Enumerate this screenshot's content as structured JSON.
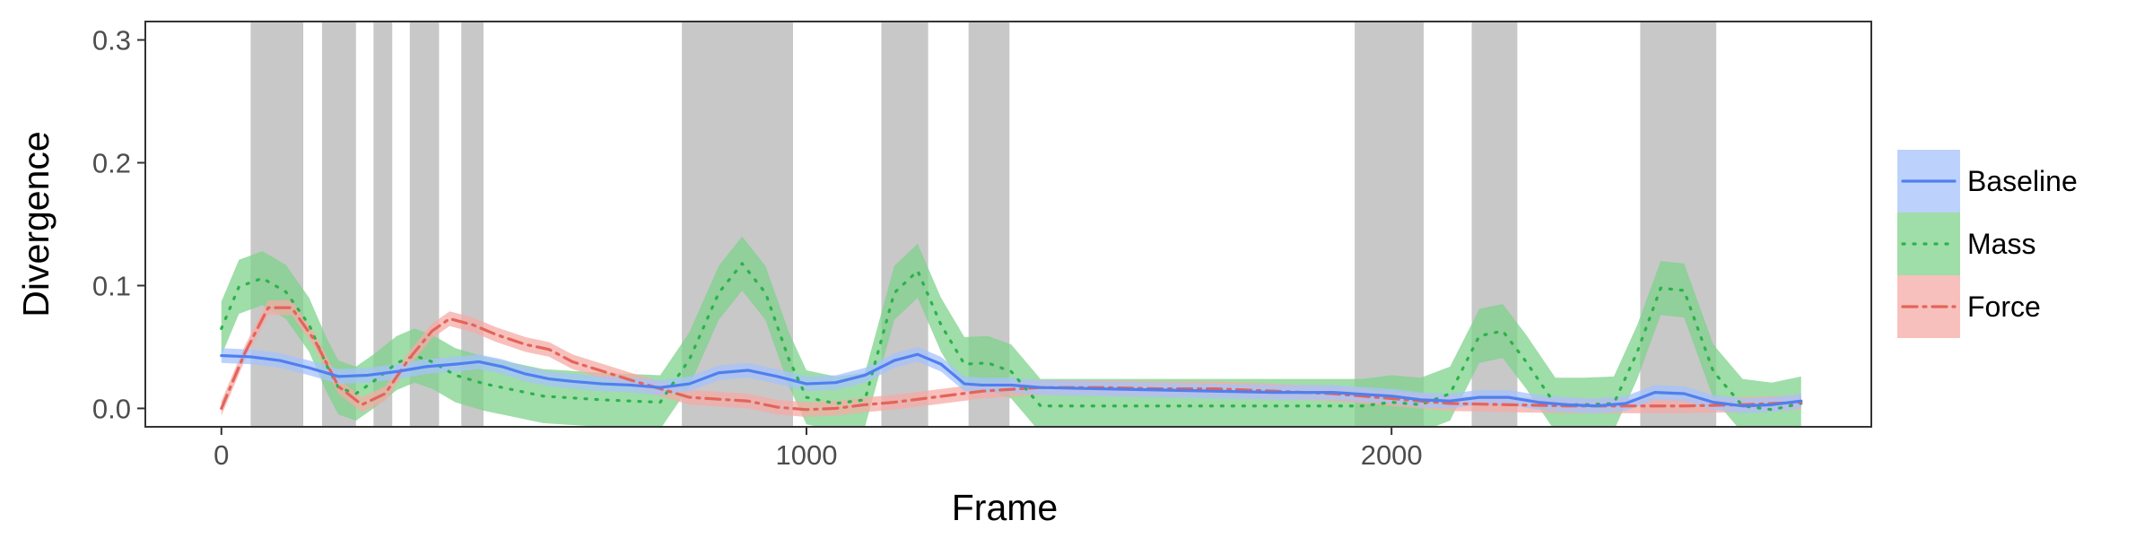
{
  "chart_data": {
    "type": "line",
    "xlabel": "Frame",
    "ylabel": "Divergence",
    "xlim": [
      -130,
      2820
    ],
    "ylim": [
      -0.015,
      0.315
    ],
    "x_ticks": [
      0,
      1000,
      2000
    ],
    "x_tick_labels": [
      "0",
      "1000",
      "2000"
    ],
    "y_ticks": [
      0.0,
      0.1,
      0.2,
      0.3
    ],
    "y_tick_labels": [
      "0.0",
      "0.1",
      "0.2",
      "0.3"
    ],
    "grid": false,
    "legend_position": "right",
    "shaded_regions": [
      [
        50,
        140
      ],
      [
        172,
        230
      ],
      [
        260,
        292
      ],
      [
        322,
        372
      ],
      [
        410,
        448
      ],
      [
        787,
        977
      ],
      [
        1128,
        1208
      ],
      [
        1277,
        1347
      ],
      [
        1937,
        2055
      ],
      [
        2137,
        2215
      ],
      [
        2425,
        2555
      ]
    ],
    "series": [
      {
        "name": "Baseline",
        "color": "#4f7ff0",
        "fill": "#a6c3fb",
        "line_style": "solid",
        "points": [
          [
            0,
            0.043
          ],
          [
            50,
            0.042
          ],
          [
            100,
            0.039
          ],
          [
            150,
            0.033
          ],
          [
            200,
            0.026
          ],
          [
            250,
            0.027
          ],
          [
            300,
            0.03
          ],
          [
            350,
            0.034
          ],
          [
            400,
            0.036
          ],
          [
            440,
            0.038
          ],
          [
            480,
            0.034
          ],
          [
            520,
            0.028
          ],
          [
            560,
            0.024
          ],
          [
            600,
            0.022
          ],
          [
            650,
            0.02
          ],
          [
            700,
            0.019
          ],
          [
            750,
            0.017
          ],
          [
            800,
            0.02
          ],
          [
            850,
            0.029
          ],
          [
            900,
            0.031
          ],
          [
            950,
            0.026
          ],
          [
            1000,
            0.02
          ],
          [
            1050,
            0.021
          ],
          [
            1100,
            0.027
          ],
          [
            1150,
            0.039
          ],
          [
            1190,
            0.044
          ],
          [
            1230,
            0.036
          ],
          [
            1270,
            0.02
          ],
          [
            1300,
            0.019
          ],
          [
            1350,
            0.019
          ],
          [
            1400,
            0.017
          ],
          [
            1500,
            0.016
          ],
          [
            1600,
            0.015
          ],
          [
            1700,
            0.014
          ],
          [
            1800,
            0.013
          ],
          [
            1900,
            0.013
          ],
          [
            2000,
            0.01
          ],
          [
            2050,
            0.007
          ],
          [
            2100,
            0.006
          ],
          [
            2150,
            0.009
          ],
          [
            2200,
            0.009
          ],
          [
            2250,
            0.005
          ],
          [
            2300,
            0.003
          ],
          [
            2350,
            0.002
          ],
          [
            2400,
            0.004
          ],
          [
            2450,
            0.013
          ],
          [
            2500,
            0.012
          ],
          [
            2550,
            0.005
          ],
          [
            2600,
            0.002
          ],
          [
            2650,
            0.003
          ],
          [
            2700,
            0.006
          ]
        ],
        "band": 0.006
      },
      {
        "name": "Mass",
        "color": "#2ab34a",
        "fill": "#7fd18c",
        "line_style": "dotted",
        "points": [
          [
            0,
            0.065
          ],
          [
            30,
            0.099
          ],
          [
            70,
            0.106
          ],
          [
            110,
            0.095
          ],
          [
            150,
            0.068
          ],
          [
            180,
            0.035
          ],
          [
            200,
            0.017
          ],
          [
            230,
            0.012
          ],
          [
            260,
            0.022
          ],
          [
            300,
            0.037
          ],
          [
            330,
            0.043
          ],
          [
            360,
            0.038
          ],
          [
            400,
            0.027
          ],
          [
            450,
            0.02
          ],
          [
            500,
            0.015
          ],
          [
            550,
            0.01
          ],
          [
            650,
            0.007
          ],
          [
            750,
            0.005
          ],
          [
            800,
            0.04
          ],
          [
            850,
            0.094
          ],
          [
            890,
            0.118
          ],
          [
            930,
            0.094
          ],
          [
            970,
            0.04
          ],
          [
            1000,
            0.009
          ],
          [
            1050,
            0.004
          ],
          [
            1100,
            0.007
          ],
          [
            1150,
            0.094
          ],
          [
            1190,
            0.112
          ],
          [
            1230,
            0.068
          ],
          [
            1270,
            0.036
          ],
          [
            1310,
            0.037
          ],
          [
            1350,
            0.03
          ],
          [
            1400,
            0.002
          ],
          [
            1500,
            0.002
          ],
          [
            1600,
            0.002
          ],
          [
            1700,
            0.002
          ],
          [
            1800,
            0.002
          ],
          [
            1900,
            0.002
          ],
          [
            1950,
            0.002
          ],
          [
            2000,
            0.005
          ],
          [
            2050,
            0.003
          ],
          [
            2100,
            0.012
          ],
          [
            2150,
            0.059
          ],
          [
            2190,
            0.063
          ],
          [
            2230,
            0.038
          ],
          [
            2280,
            0.003
          ],
          [
            2330,
            0.003
          ],
          [
            2380,
            0.004
          ],
          [
            2420,
            0.046
          ],
          [
            2460,
            0.098
          ],
          [
            2500,
            0.096
          ],
          [
            2550,
            0.03
          ],
          [
            2600,
            0.002
          ],
          [
            2650,
            -0.001
          ],
          [
            2700,
            0.004
          ]
        ],
        "band": 0.022
      },
      {
        "name": "Force",
        "color": "#e4645a",
        "fill": "#f5aba6",
        "line_style": "dashdot",
        "points": [
          [
            0,
            0.0
          ],
          [
            40,
            0.045
          ],
          [
            80,
            0.082
          ],
          [
            120,
            0.082
          ],
          [
            160,
            0.055
          ],
          [
            200,
            0.018
          ],
          [
            240,
            0.003
          ],
          [
            280,
            0.012
          ],
          [
            320,
            0.04
          ],
          [
            360,
            0.063
          ],
          [
            390,
            0.073
          ],
          [
            430,
            0.068
          ],
          [
            470,
            0.06
          ],
          [
            520,
            0.052
          ],
          [
            560,
            0.048
          ],
          [
            600,
            0.038
          ],
          [
            700,
            0.023
          ],
          [
            800,
            0.009
          ],
          [
            900,
            0.006
          ],
          [
            950,
            0.001
          ],
          [
            1000,
            -0.001
          ],
          [
            1050,
            0.0
          ],
          [
            1100,
            0.003
          ],
          [
            1150,
            0.005
          ],
          [
            1200,
            0.008
          ],
          [
            1300,
            0.014
          ],
          [
            1400,
            0.017
          ],
          [
            1500,
            0.017
          ],
          [
            1600,
            0.016
          ],
          [
            1700,
            0.016
          ],
          [
            1800,
            0.014
          ],
          [
            1900,
            0.012
          ],
          [
            2000,
            0.008
          ],
          [
            2100,
            0.004
          ],
          [
            2200,
            0.003
          ],
          [
            2300,
            0.002
          ],
          [
            2400,
            0.002
          ],
          [
            2500,
            0.002
          ],
          [
            2600,
            0.003
          ],
          [
            2700,
            0.005
          ]
        ],
        "band": 0.006
      }
    ]
  }
}
